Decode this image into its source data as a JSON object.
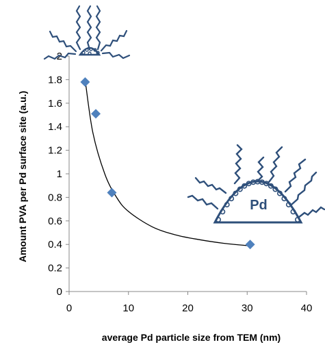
{
  "chart_data": {
    "type": "scatter",
    "xlabel": "average Pd particle size from TEM (nm)",
    "ylabel": "Amount PVA per Pd surface site (a.u.)",
    "xlim": [
      0,
      40
    ],
    "ylim": [
      0,
      2
    ],
    "x_ticks": [
      0,
      10,
      20,
      30,
      40
    ],
    "y_ticks": [
      0,
      0.2,
      0.4,
      0.6,
      0.8,
      1,
      1.2,
      1.4,
      1.6,
      1.8,
      2
    ],
    "grid": false,
    "legend": "none",
    "series": [
      {
        "marker": "diamond",
        "color": "#4f81bd",
        "points": [
          {
            "x": 2.7,
            "y": 1.78
          },
          {
            "x": 4.5,
            "y": 1.51
          },
          {
            "x": 7.2,
            "y": 0.84
          },
          {
            "x": 30.5,
            "y": 0.4
          }
        ]
      }
    ],
    "trendline": {
      "type": "power",
      "color": "#000000",
      "points": [
        {
          "x": 2.7,
          "y": 1.8
        },
        {
          "x": 4,
          "y": 1.35
        },
        {
          "x": 6,
          "y": 1.0
        },
        {
          "x": 8,
          "y": 0.8
        },
        {
          "x": 10,
          "y": 0.68
        },
        {
          "x": 14,
          "y": 0.55
        },
        {
          "x": 18,
          "y": 0.48
        },
        {
          "x": 22,
          "y": 0.44
        },
        {
          "x": 26,
          "y": 0.41
        },
        {
          "x": 30,
          "y": 0.39
        }
      ]
    },
    "annotations": [
      {
        "name": "small-particle-illustration",
        "label": ""
      },
      {
        "name": "large-particle-illustration",
        "label": "Pd"
      }
    ],
    "colors": {
      "marker": "#4f81bd",
      "illustration": "#2e4f7a",
      "trendline": "#000000"
    }
  }
}
